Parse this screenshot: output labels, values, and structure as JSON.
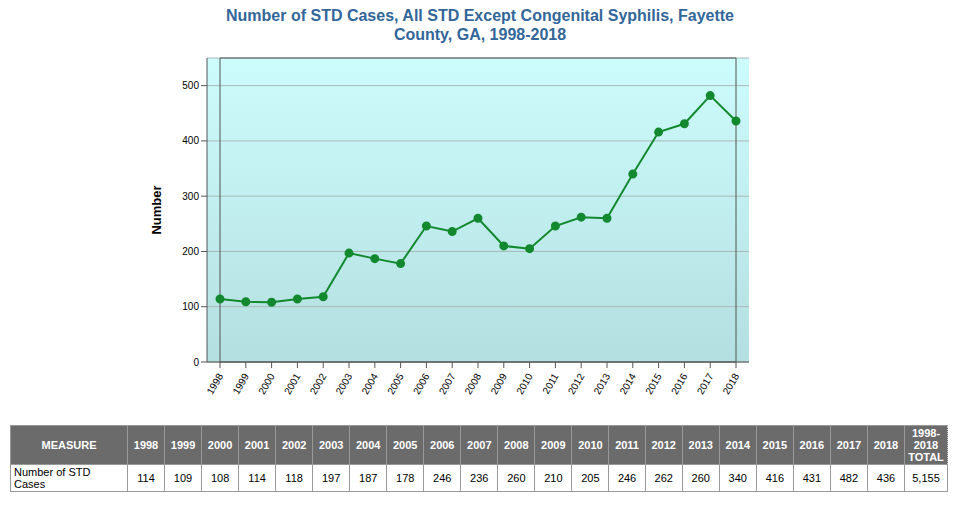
{
  "chart_data": {
    "type": "line",
    "title": "Number of STD Cases, All STD Except Congenital Syphilis, Fayette County, GA, 1998-2018",
    "y_label": "Number",
    "categories": [
      "1998",
      "1999",
      "2000",
      "2001",
      "2002",
      "2003",
      "2004",
      "2005",
      "2006",
      "2007",
      "2008",
      "2009",
      "2010",
      "2011",
      "2012",
      "2013",
      "2014",
      "2015",
      "2016",
      "2017",
      "2018"
    ],
    "values": [
      114,
      109,
      108,
      114,
      118,
      197,
      187,
      178,
      246,
      236,
      260,
      210,
      205,
      246,
      262,
      260,
      340,
      416,
      431,
      482,
      436
    ],
    "color": "#13892f",
    "marker": "circle",
    "ylim": [
      0,
      550
    ],
    "yticks": [
      0,
      100,
      200,
      300,
      400,
      500
    ],
    "grid": true
  },
  "table": {
    "header": "MEASURE",
    "total_header": "1998-2018 TOTAL",
    "row_label": "Number of STD Cases",
    "total": "5,155"
  }
}
